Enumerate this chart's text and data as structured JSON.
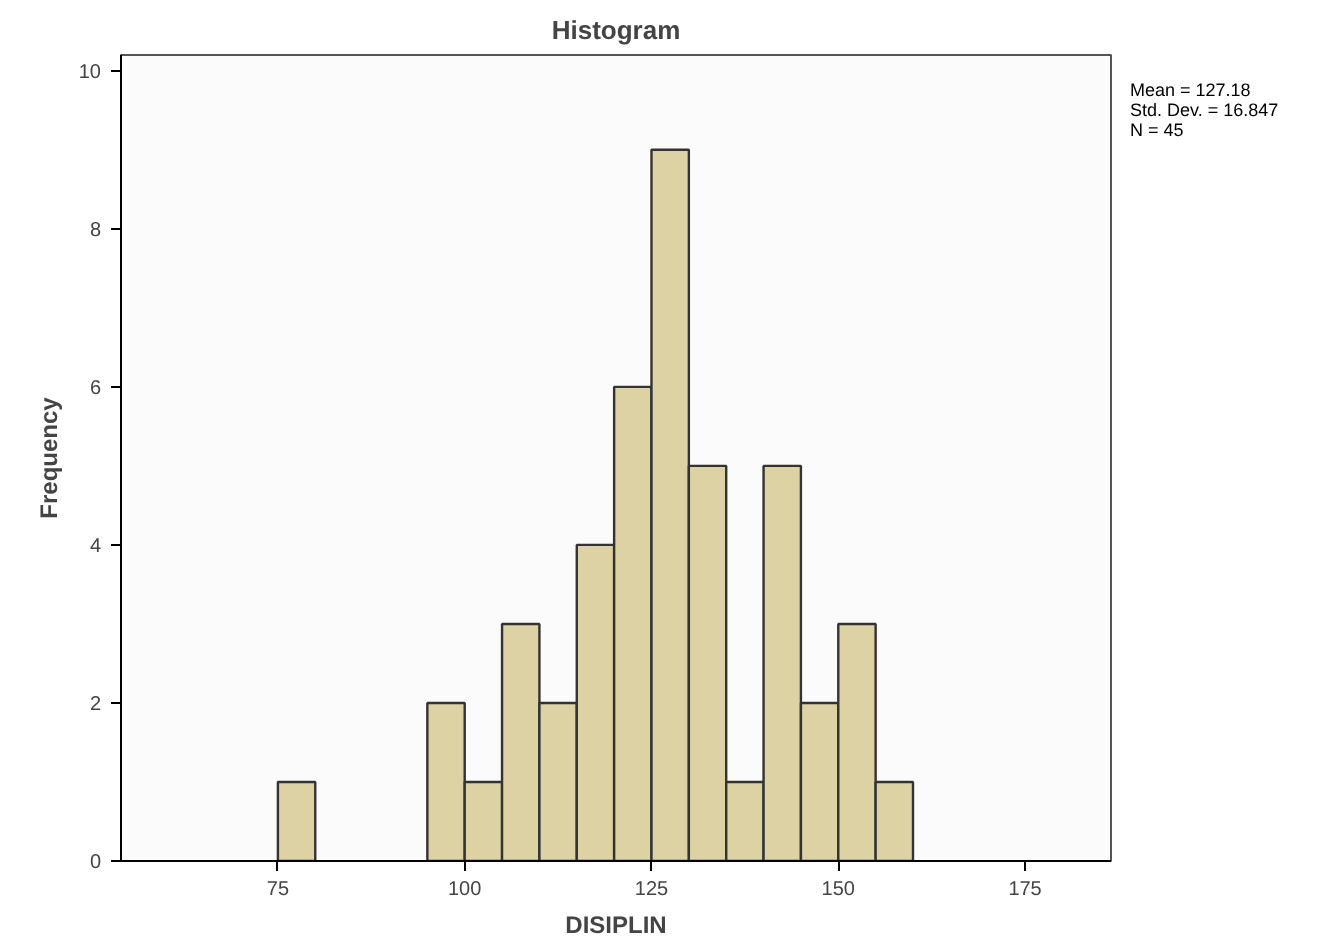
{
  "chart_data": {
    "type": "histogram",
    "title": "Histogram",
    "xlabel": "DISIPLIN",
    "ylabel": "Frequency",
    "bins": [
      75,
      80,
      85,
      90,
      95,
      100,
      105,
      110,
      115,
      120,
      125,
      130,
      135,
      140,
      145,
      150,
      155,
      160
    ],
    "values": [
      1,
      0,
      0,
      0,
      2,
      1,
      3,
      2,
      4,
      6,
      9,
      5,
      1,
      5,
      2,
      3,
      1
    ],
    "color": "#ddd2a4",
    "xlim": [
      54,
      186.5
    ],
    "xticks": [
      75,
      100,
      125,
      150,
      175
    ],
    "ylim": [
      0,
      10.2
    ],
    "yticks": [
      0,
      2,
      4,
      6,
      8,
      10
    ],
    "grid": false,
    "annotations": [
      "Mean = 127.18",
      "Std. Dev. = 16.847",
      "N = 45"
    ]
  }
}
